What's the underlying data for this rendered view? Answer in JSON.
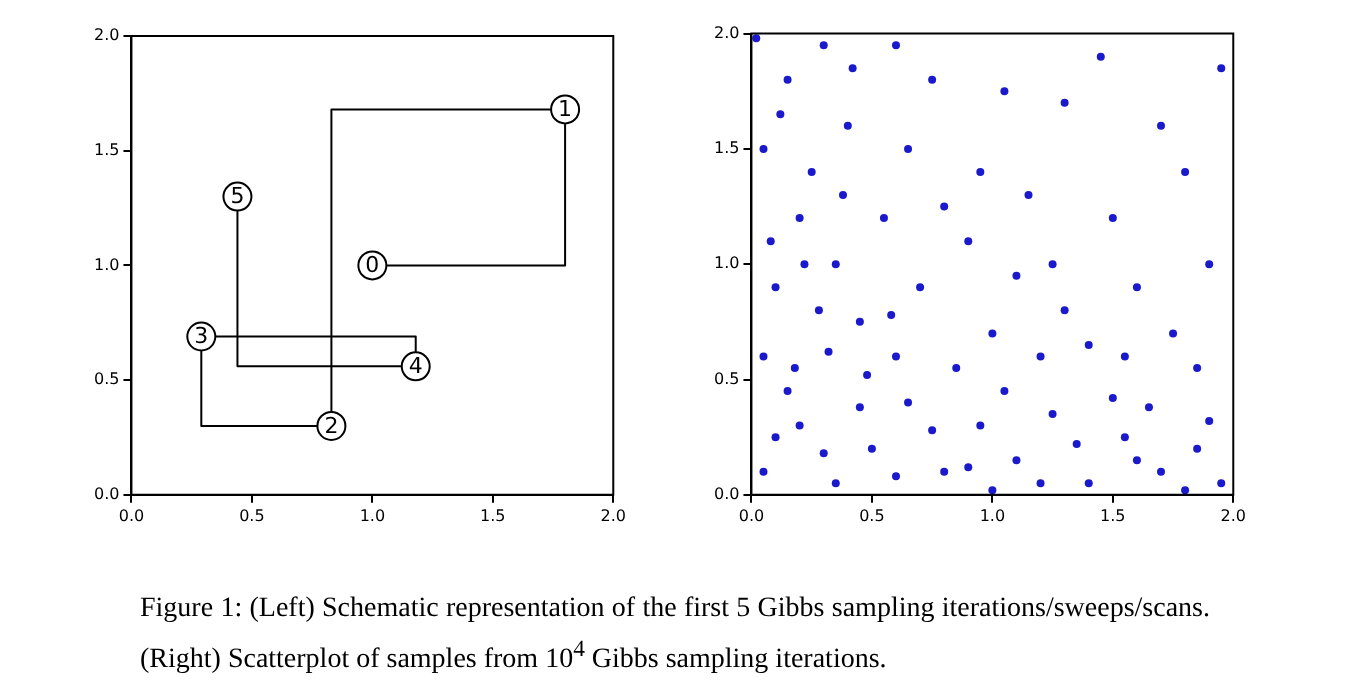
{
  "chart_data": [
    {
      "type": "line",
      "xlim": [
        0,
        2
      ],
      "ylim": [
        0,
        2
      ],
      "xticks": [
        {
          "value": 0,
          "label": "0.0"
        },
        {
          "value": 0.5,
          "label": "0.5"
        },
        {
          "value": 1,
          "label": "1.0"
        },
        {
          "value": 1.5,
          "label": "1.5"
        },
        {
          "value": 2,
          "label": "2.0"
        }
      ],
      "yticks": [
        {
          "value": 0,
          "label": "0.0"
        },
        {
          "value": 0.5,
          "label": "0.5"
        },
        {
          "value": 1,
          "label": "1.0"
        },
        {
          "value": 1.5,
          "label": "1.5"
        },
        {
          "value": 2,
          "label": "2.0"
        }
      ],
      "grid": false,
      "legend": false,
      "series": [
        {
          "type": "line",
          "color": "#000000",
          "marker": "none",
          "x": [
            1.0,
            1.8,
            1.8,
            0.83,
            0.83,
            0.29,
            0.29,
            1.18,
            1.18,
            0.44,
            0.44
          ],
          "values": [
            1.0,
            1.0,
            1.68,
            1.68,
            0.3,
            0.3,
            0.69,
            0.69,
            0.56,
            0.56,
            1.3
          ]
        },
        {
          "type": "scatter",
          "color": "#000000",
          "marker": "circle",
          "x": [
            1.0,
            1.8,
            0.83,
            0.29,
            1.18,
            0.44
          ],
          "values": [
            1.0,
            1.68,
            0.3,
            0.69,
            0.56,
            1.3
          ]
        }
      ],
      "annotations": [
        {
          "text": "0",
          "x": 1.0,
          "y": 1.0
        },
        {
          "text": "1",
          "x": 1.8,
          "y": 1.68
        },
        {
          "text": "2",
          "x": 0.83,
          "y": 0.3
        },
        {
          "text": "3",
          "x": 0.29,
          "y": 0.69
        },
        {
          "text": "4",
          "x": 1.18,
          "y": 0.56
        },
        {
          "text": "5",
          "x": 0.44,
          "y": 1.3
        },
        "Figure 1: (Left) Schematic representation of the first 5 Gibbs sampling iterations/sweeps/scans. (Right) Scatterplot of samples from 10$^{4}$ Gibbs sampling iterations."
      ]
    },
    {
      "type": "scatter",
      "xlim": [
        0,
        2
      ],
      "ylim": [
        0,
        2
      ],
      "xticks": [
        {
          "value": 0,
          "label": "0.0"
        },
        {
          "value": 0.5,
          "label": "0.5"
        },
        {
          "value": 1,
          "label": "1.0"
        },
        {
          "value": 1.5,
          "label": "1.5"
        },
        {
          "value": 2,
          "label": "2.0"
        }
      ],
      "yticks": [
        {
          "value": 0,
          "label": "0.0"
        },
        {
          "value": 0.5,
          "label": "0.5"
        },
        {
          "value": 1,
          "label": "1.0"
        },
        {
          "value": 1.5,
          "label": "1.5"
        },
        {
          "value": 2,
          "label": "2.0"
        }
      ],
      "grid": false,
      "legend": false,
      "marker": "circle",
      "series": [
        {
          "color": "#1a1acc",
          "x": [
            0.05,
            0.2,
            0.35,
            0.5,
            0.65,
            0.8,
            0.95,
            1.1,
            1.25,
            1.4,
            1.55,
            1.7,
            1.85,
            1.95,
            0.15,
            0.45,
            0.75,
            1.05,
            1.35,
            1.65,
            1.9,
            0.3,
            0.6,
            0.9,
            1.2,
            1.5,
            1.8,
            0.1,
            1.0,
            1.6,
            0.05,
            0.1,
            0.2,
            0.05,
            0.15,
            0.3,
            0.4,
            0.25,
            0.35,
            0.45,
            0.08,
            0.18,
            0.42,
            0.02,
            0.28,
            0.12,
            0.38,
            0.22,
            0.48,
            0.32,
            0.6,
            0.7,
            0.55,
            0.65,
            0.75,
            0.85,
            0.9,
            1.0,
            1.1,
            1.2,
            1.3,
            0.6,
            0.95,
            1.15,
            0.8,
            0.58,
            1.4,
            1.25,
            1.5,
            1.7,
            1.9,
            1.3,
            1.6,
            1.8,
            1.95,
            1.45,
            1.05,
            1.75,
            1.55,
            1.85
          ],
          "values": [
            0.1,
            0.3,
            0.05,
            0.2,
            0.4,
            0.1,
            0.3,
            0.15,
            0.35,
            0.05,
            0.25,
            0.1,
            0.2,
            0.05,
            0.45,
            0.38,
            0.28,
            0.45,
            0.22,
            0.38,
            0.32,
            0.18,
            0.08,
            0.12,
            0.05,
            0.42,
            0.02,
            0.25,
            0.02,
            0.15,
            0.6,
            0.9,
            1.2,
            1.5,
            1.8,
            1.95,
            1.6,
            1.4,
            1.0,
            0.75,
            1.1,
            0.55,
            1.85,
            1.98,
            0.8,
            1.65,
            1.3,
            1.0,
            0.52,
            0.62,
            0.6,
            0.9,
            1.2,
            1.5,
            1.8,
            0.55,
            1.1,
            0.7,
            0.95,
            0.6,
            0.8,
            1.95,
            1.4,
            1.3,
            1.25,
            0.78,
            0.65,
            1.0,
            1.2,
            1.6,
            1.0,
            1.7,
            0.9,
            1.4,
            1.85,
            1.9,
            1.75,
            0.7,
            0.6,
            0.55
          ]
        }
      ]
    }
  ]
}
